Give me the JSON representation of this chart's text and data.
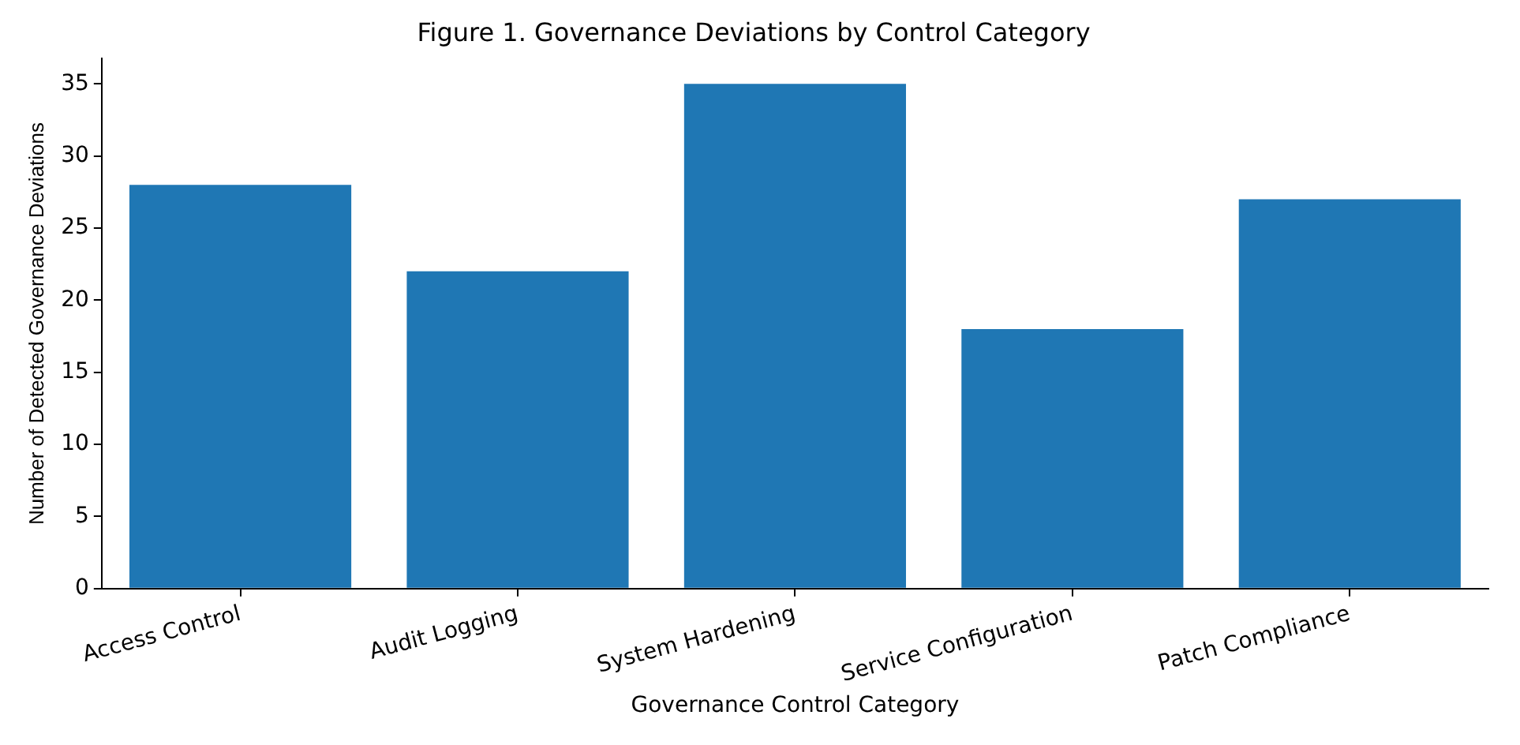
{
  "chart_data": {
    "type": "bar",
    "title": "Figure 1. Governance Deviations by Control Category",
    "xlabel": "Governance Control Category",
    "ylabel": "Number of Detected Governance Deviations",
    "categories": [
      "Access Control",
      "Audit Logging",
      "System Hardening",
      "Service Configuration",
      "Patch Compliance"
    ],
    "values": [
      28,
      22,
      35,
      18,
      27
    ],
    "color": "#1f77b4",
    "ylim": [
      0,
      36.75
    ],
    "yticks": [
      0,
      5,
      10,
      15,
      20,
      25,
      30,
      35
    ],
    "grid": false,
    "legend": false
  }
}
